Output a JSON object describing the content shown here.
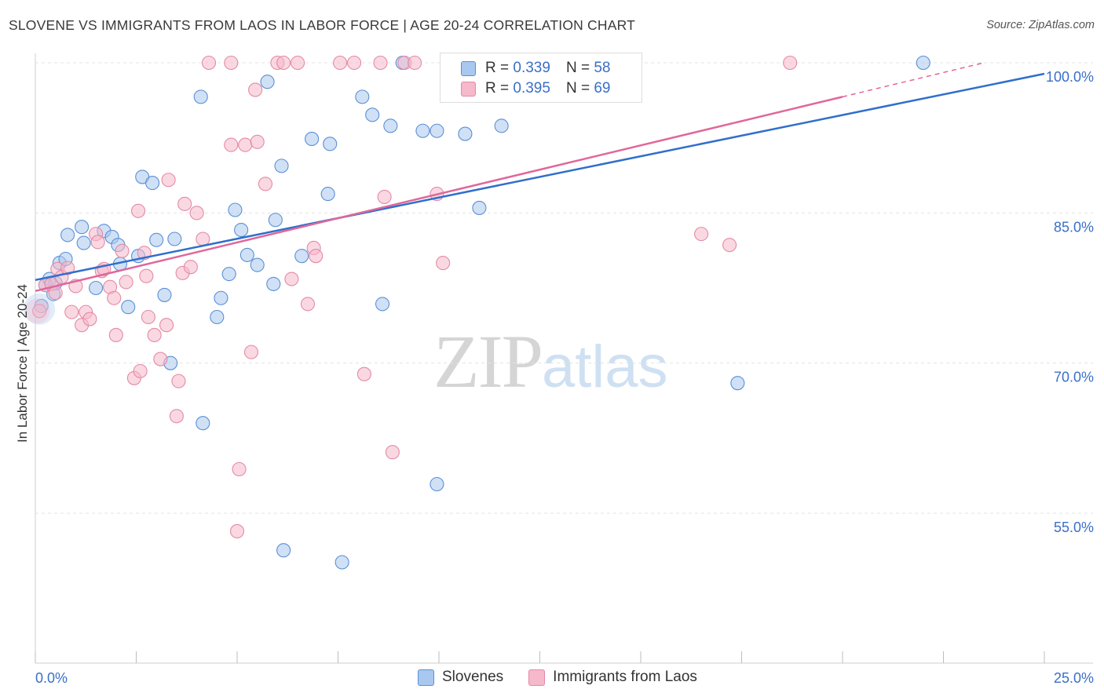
{
  "header": {
    "title": "SLOVENE VS IMMIGRANTS FROM LAOS IN LABOR FORCE | AGE 20-24 CORRELATION CHART",
    "source": "Source: ZipAtlas.com"
  },
  "watermark": {
    "zip": "ZIP",
    "atlas": "atlas"
  },
  "legend": {
    "rows": [
      {
        "r_label": "R = ",
        "r_value": "0.339",
        "n_label": "N = ",
        "n_value": "58"
      },
      {
        "r_label": "R = ",
        "r_value": "0.395",
        "n_label": "N = ",
        "n_value": "69"
      }
    ]
  },
  "bottom_legend": {
    "series1": "Slovenes",
    "series2": "Immigrants from Laos"
  },
  "colors": {
    "blue_fill": "#a9c8ef",
    "blue_stroke": "#5b8fd6",
    "blue_line": "#2f6fcb",
    "pink_fill": "#f6b8cb",
    "pink_stroke": "#e48aa6",
    "pink_line": "#e0679a",
    "axis_label": "#3a6fc8",
    "grid": "#e3e3e3"
  },
  "chart_data": {
    "type": "scatter",
    "title": "SLOVENE VS IMMIGRANTS FROM LAOS IN LABOR FORCE | AGE 20-24 CORRELATION CHART",
    "xlabel": "",
    "ylabel": "In Labor Force | Age 20-24",
    "xlim": [
      0,
      25
    ],
    "ylim": [
      40,
      101
    ],
    "x_tick_labels": [
      {
        "value": 0,
        "label": "0.0%"
      },
      {
        "value": 25,
        "label": "25.0%"
      }
    ],
    "y_ticks": [
      {
        "value": 55,
        "label": "55.0%"
      },
      {
        "value": 70,
        "label": "70.0%"
      },
      {
        "value": 85,
        "label": "85.0%"
      },
      {
        "value": 100,
        "label": "100.0%"
      }
    ],
    "grid": true,
    "legend_position": "top-center",
    "series": [
      {
        "name": "Slovenes",
        "color": "#a9c8ef",
        "R": 0.339,
        "N": 58,
        "trend": {
          "x": [
            0,
            25
          ],
          "y": [
            78.3,
            98.9
          ]
        },
        "points": [
          [
            0.15,
            75.7
          ],
          [
            0.25,
            77.8
          ],
          [
            0.35,
            78.4
          ],
          [
            0.45,
            76.9
          ],
          [
            0.6,
            80.0
          ],
          [
            0.75,
            80.4
          ],
          [
            0.8,
            82.8
          ],
          [
            1.15,
            83.6
          ],
          [
            1.2,
            82.0
          ],
          [
            1.7,
            83.2
          ],
          [
            1.9,
            82.6
          ],
          [
            2.05,
            81.8
          ],
          [
            2.1,
            79.9
          ],
          [
            2.3,
            75.6
          ],
          [
            2.55,
            80.7
          ],
          [
            2.65,
            88.6
          ],
          [
            2.9,
            88.0
          ],
          [
            3.0,
            82.3
          ],
          [
            3.2,
            76.8
          ],
          [
            3.35,
            70.0
          ],
          [
            3.45,
            82.4
          ],
          [
            4.1,
            96.6
          ],
          [
            4.15,
            64.0
          ],
          [
            4.5,
            74.6
          ],
          [
            4.6,
            76.5
          ],
          [
            4.8,
            78.9
          ],
          [
            4.95,
            85.3
          ],
          [
            5.1,
            83.3
          ],
          [
            5.25,
            80.8
          ],
          [
            5.5,
            79.8
          ],
          [
            5.75,
            98.1
          ],
          [
            5.9,
            77.9
          ],
          [
            5.95,
            84.3
          ],
          [
            6.1,
            89.7
          ],
          [
            6.15,
            51.3
          ],
          [
            6.6,
            80.7
          ],
          [
            6.85,
            92.4
          ],
          [
            7.25,
            86.9
          ],
          [
            7.3,
            91.9
          ],
          [
            7.6,
            50.1
          ],
          [
            8.1,
            96.6
          ],
          [
            8.35,
            94.8
          ],
          [
            8.6,
            75.9
          ],
          [
            8.8,
            93.7
          ],
          [
            9.1,
            100.0
          ],
          [
            9.6,
            93.2
          ],
          [
            9.95,
            93.2
          ],
          [
            9.95,
            57.9
          ],
          [
            10.2,
            100.0
          ],
          [
            10.65,
            92.9
          ],
          [
            11.0,
            85.5
          ],
          [
            11.55,
            93.7
          ],
          [
            12.2,
            100.0
          ],
          [
            14.0,
            100.0
          ],
          [
            17.4,
            68.0
          ],
          [
            22.0,
            100.0
          ],
          [
            0.5,
            78.0
          ],
          [
            1.5,
            77.5
          ]
        ]
      },
      {
        "name": "Immigrants from Laos",
        "color": "#f6b8cb",
        "R": 0.395,
        "N": 69,
        "trend": {
          "x": [
            0,
            20
          ],
          "y": [
            77.2,
            96.6
          ]
        },
        "trend_dashed": {
          "x": [
            20,
            23.5
          ],
          "y": [
            96.6,
            100.0
          ]
        },
        "points": [
          [
            0.1,
            75.2
          ],
          [
            0.25,
            77.8
          ],
          [
            0.4,
            77.9
          ],
          [
            0.5,
            77.0
          ],
          [
            0.55,
            79.4
          ],
          [
            0.65,
            78.6
          ],
          [
            0.8,
            79.5
          ],
          [
            0.9,
            75.1
          ],
          [
            1.0,
            77.7
          ],
          [
            1.15,
            73.8
          ],
          [
            1.25,
            75.1
          ],
          [
            1.35,
            74.4
          ],
          [
            1.5,
            82.9
          ],
          [
            1.55,
            82.1
          ],
          [
            1.65,
            79.2
          ],
          [
            1.7,
            79.4
          ],
          [
            1.85,
            77.6
          ],
          [
            1.95,
            76.5
          ],
          [
            2.0,
            72.8
          ],
          [
            2.15,
            81.2
          ],
          [
            2.25,
            78.1
          ],
          [
            2.45,
            68.5
          ],
          [
            2.55,
            85.2
          ],
          [
            2.6,
            69.2
          ],
          [
            2.7,
            81.0
          ],
          [
            2.75,
            78.7
          ],
          [
            2.8,
            74.6
          ],
          [
            2.95,
            72.8
          ],
          [
            3.1,
            70.4
          ],
          [
            3.25,
            73.8
          ],
          [
            3.3,
            88.3
          ],
          [
            3.5,
            64.7
          ],
          [
            3.55,
            68.2
          ],
          [
            3.65,
            79.0
          ],
          [
            3.7,
            85.9
          ],
          [
            3.85,
            79.6
          ],
          [
            4.0,
            85.0
          ],
          [
            4.15,
            82.4
          ],
          [
            4.3,
            100.0
          ],
          [
            4.85,
            100.0
          ],
          [
            4.85,
            91.8
          ],
          [
            5.0,
            53.2
          ],
          [
            5.05,
            59.4
          ],
          [
            5.2,
            91.8
          ],
          [
            5.35,
            71.1
          ],
          [
            5.45,
            97.3
          ],
          [
            5.5,
            92.1
          ],
          [
            5.7,
            87.9
          ],
          [
            6.0,
            100.0
          ],
          [
            6.15,
            100.0
          ],
          [
            6.35,
            78.4
          ],
          [
            6.5,
            100.0
          ],
          [
            6.75,
            75.9
          ],
          [
            6.9,
            81.5
          ],
          [
            6.95,
            80.7
          ],
          [
            7.55,
            100.0
          ],
          [
            7.9,
            100.0
          ],
          [
            8.15,
            68.9
          ],
          [
            8.55,
            100.0
          ],
          [
            8.65,
            86.6
          ],
          [
            8.85,
            61.1
          ],
          [
            9.15,
            100.0
          ],
          [
            9.4,
            100.0
          ],
          [
            9.95,
            86.9
          ],
          [
            10.1,
            80.0
          ],
          [
            10.45,
            100.0
          ],
          [
            16.5,
            82.9
          ],
          [
            17.2,
            81.8
          ],
          [
            18.7,
            100.0
          ]
        ]
      }
    ]
  }
}
